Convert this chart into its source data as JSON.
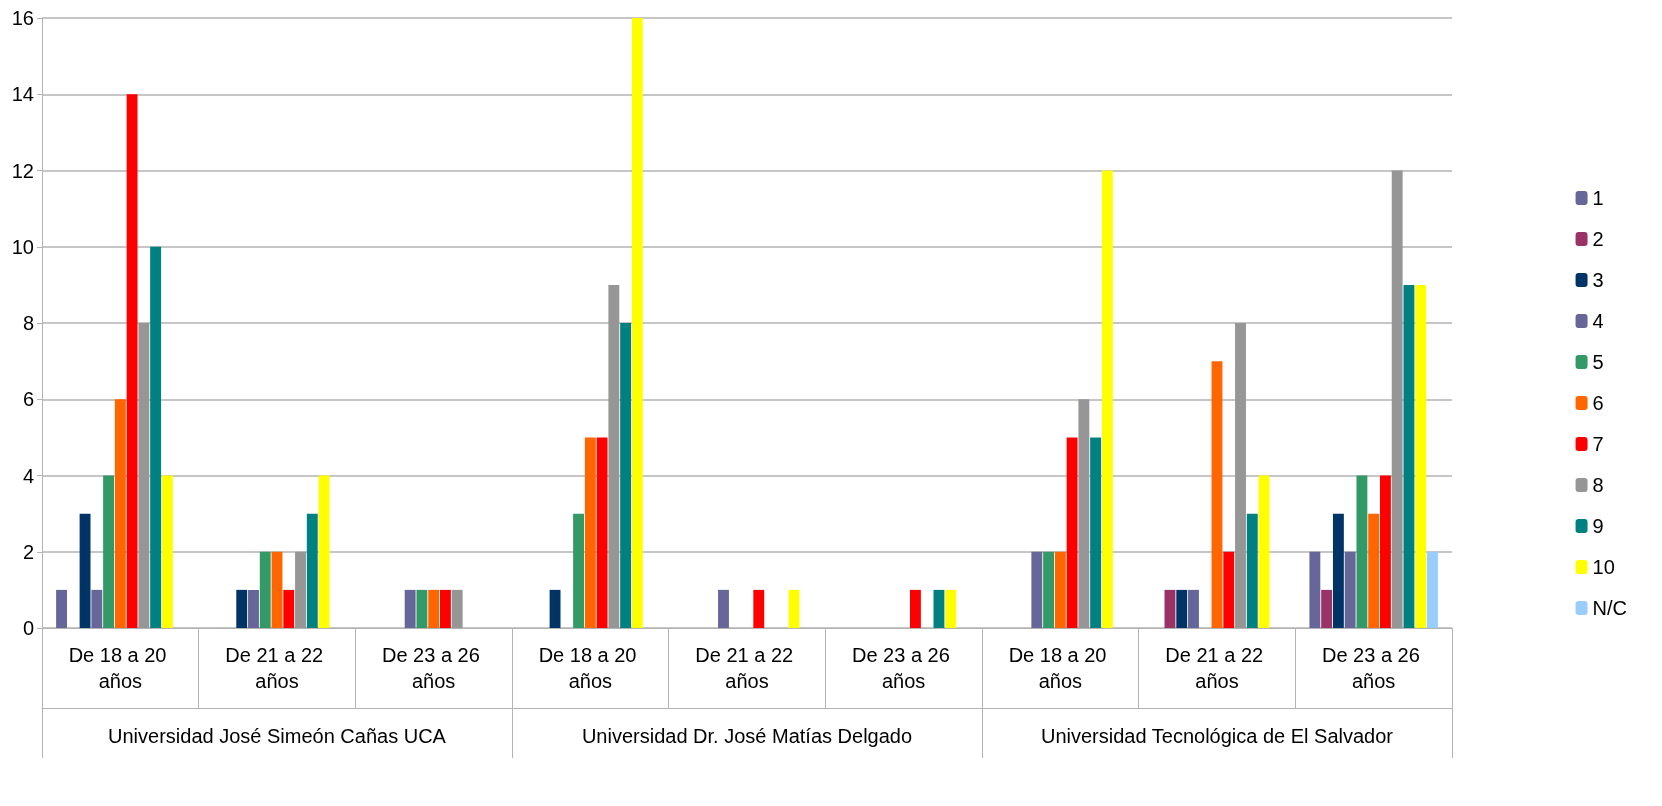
{
  "chart_data": {
    "type": "bar",
    "categories": [
      "De 18 a 20 años",
      "De 21 a 22 años",
      "De 23 a 26 años",
      "De 18 a 20 años",
      "De 21 a 22 años",
      "De 23 a 26 años",
      "De 18 a 20 años",
      "De 21 a 22 años",
      "De 23 a 26 años"
    ],
    "annotations": [
      "Universidad José Simeón Cañas UCA",
      "Universidad Dr. José Matías Delgado",
      "Universidad Tecnológica de El Salvador"
    ],
    "series": [
      {
        "name": "1",
        "color": "#666699",
        "values": [
          1,
          0,
          0,
          0,
          0,
          0,
          0,
          0,
          2
        ]
      },
      {
        "name": "2",
        "color": "#993366",
        "values": [
          0,
          0,
          0,
          0,
          0,
          0,
          0,
          1,
          1
        ]
      },
      {
        "name": "3",
        "color": "#003366",
        "values": [
          3,
          1,
          0,
          1,
          0,
          0,
          0,
          1,
          3
        ]
      },
      {
        "name": "4",
        "color": "#666699",
        "values": [
          1,
          1,
          1,
          0,
          1,
          0,
          2,
          1,
          2
        ]
      },
      {
        "name": "5",
        "color": "#339966",
        "values": [
          4,
          2,
          1,
          3,
          0,
          0,
          2,
          0,
          4
        ]
      },
      {
        "name": "6",
        "color": "#ff6600",
        "values": [
          6,
          2,
          1,
          5,
          0,
          0,
          2,
          7,
          3
        ]
      },
      {
        "name": "7",
        "color": "#ff0000",
        "values": [
          14,
          1,
          1,
          5,
          1,
          1,
          5,
          2,
          4
        ]
      },
      {
        "name": "8",
        "color": "#969696",
        "values": [
          8,
          2,
          1,
          9,
          0,
          0,
          6,
          8,
          12
        ]
      },
      {
        "name": "9",
        "color": "#008080",
        "values": [
          10,
          3,
          0,
          8,
          0,
          1,
          5,
          3,
          9
        ]
      },
      {
        "name": "10",
        "color": "#ffff00",
        "values": [
          4,
          4,
          0,
          16,
          1,
          1,
          12,
          4,
          9
        ]
      },
      {
        "name": "N/C",
        "color": "#99ccff",
        "values": [
          0,
          0,
          0,
          0,
          0,
          0,
          0,
          0,
          2
        ]
      }
    ],
    "ylim": [
      0,
      16
    ],
    "yticks": [
      0,
      2,
      4,
      6,
      8,
      10,
      12,
      14,
      16
    ],
    "grid": "y",
    "legend": "right"
  }
}
